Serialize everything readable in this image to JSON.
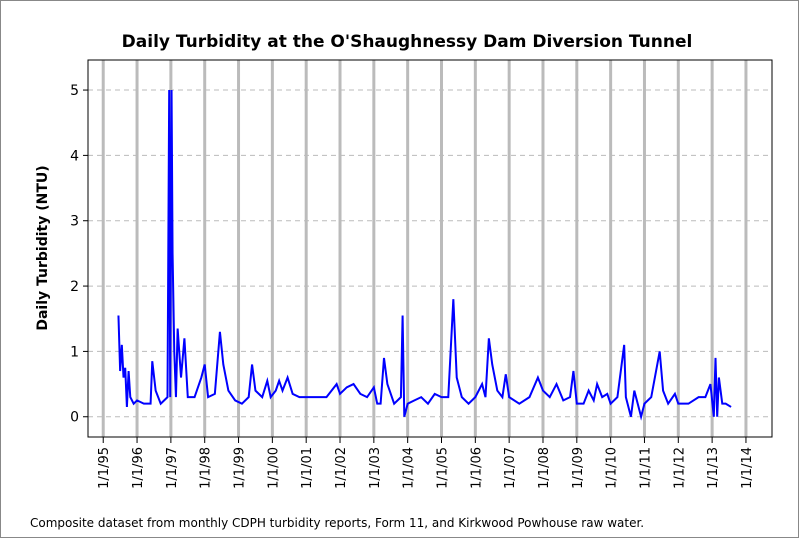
{
  "chart_data": {
    "type": "line",
    "title": "Daily Turbidity at the O'Shaughnessy Dam Diversion Tunnel",
    "y_label": "Daily Turbidity (NTU)",
    "note": "Composite dataset from monthly CDPH turbidity reports, Form 11, and Kirkwood Powhouse raw water.",
    "x": [
      1995.45,
      1995.5,
      1995.55,
      1995.6,
      1995.65,
      1995.7,
      1995.75,
      1995.8,
      1995.9,
      1996.0,
      1996.2,
      1996.4,
      1996.45,
      1996.55,
      1996.7,
      1996.9,
      1996.95,
      1996.98,
      1997.02,
      1997.05,
      1997.1,
      1997.15,
      1997.2,
      1997.3,
      1997.4,
      1997.5,
      1997.7,
      1997.9,
      1998.0,
      1998.1,
      1998.3,
      1998.45,
      1998.55,
      1998.7,
      1998.9,
      1999.1,
      1999.3,
      1999.4,
      1999.5,
      1999.7,
      1999.85,
      1999.95,
      2000.1,
      2000.2,
      2000.3,
      2000.45,
      2000.6,
      2000.8,
      2001.0,
      2001.3,
      2001.6,
      2001.9,
      2002.0,
      2002.2,
      2002.4,
      2002.6,
      2002.8,
      2003.0,
      2003.1,
      2003.2,
      2003.3,
      2003.4,
      2003.6,
      2003.8,
      2003.85,
      2003.9,
      2004.0,
      2004.2,
      2004.4,
      2004.6,
      2004.8,
      2005.0,
      2005.2,
      2005.35,
      2005.45,
      2005.6,
      2005.8,
      2006.0,
      2006.2,
      2006.3,
      2006.4,
      2006.5,
      2006.65,
      2006.8,
      2006.9,
      2007.0,
      2007.3,
      2007.6,
      2007.85,
      2008.0,
      2008.2,
      2008.4,
      2008.6,
      2008.8,
      2008.9,
      2009.0,
      2009.2,
      2009.35,
      2009.5,
      2009.6,
      2009.75,
      2009.9,
      2010.0,
      2010.2,
      2010.4,
      2010.45,
      2010.6,
      2010.7,
      2010.9,
      2011.0,
      2011.2,
      2011.45,
      2011.55,
      2011.7,
      2011.9,
      2012.0,
      2012.3,
      2012.6,
      2012.8,
      2012.95,
      2013.05,
      2013.1,
      2013.15,
      2013.2,
      2013.3,
      2013.4,
      2013.56
    ],
    "series": [
      {
        "name": "Daily Turbidity",
        "color": "#0000ff",
        "values": [
          1.55,
          0.7,
          1.1,
          0.6,
          0.75,
          0.15,
          0.7,
          0.3,
          0.2,
          0.25,
          0.2,
          0.2,
          0.85,
          0.4,
          0.2,
          0.3,
          5.0,
          0.3,
          5.0,
          2.5,
          1.0,
          0.3,
          1.35,
          0.6,
          1.2,
          0.3,
          0.3,
          0.6,
          0.8,
          0.3,
          0.35,
          1.3,
          0.8,
          0.4,
          0.25,
          0.2,
          0.3,
          0.8,
          0.4,
          0.3,
          0.55,
          0.3,
          0.4,
          0.55,
          0.4,
          0.6,
          0.35,
          0.3,
          0.3,
          0.3,
          0.3,
          0.5,
          0.35,
          0.45,
          0.5,
          0.35,
          0.3,
          0.45,
          0.2,
          0.2,
          0.9,
          0.5,
          0.2,
          0.3,
          1.55,
          0.0,
          0.2,
          0.25,
          0.3,
          0.2,
          0.35,
          0.3,
          0.3,
          1.8,
          0.6,
          0.3,
          0.2,
          0.3,
          0.5,
          0.3,
          1.2,
          0.8,
          0.4,
          0.3,
          0.65,
          0.3,
          0.2,
          0.3,
          0.6,
          0.4,
          0.3,
          0.5,
          0.25,
          0.3,
          0.7,
          0.2,
          0.2,
          0.4,
          0.25,
          0.5,
          0.3,
          0.35,
          0.2,
          0.3,
          1.1,
          0.3,
          0.0,
          0.4,
          0.0,
          0.2,
          0.3,
          1.0,
          0.4,
          0.2,
          0.35,
          0.2,
          0.2,
          0.3,
          0.3,
          0.5,
          0.0,
          0.9,
          0.0,
          0.6,
          0.2,
          0.2,
          0.15
        ]
      }
    ],
    "xlim": [
      1994.55,
      2014.77
    ],
    "ylim": [
      -0.31,
      5.46
    ],
    "xticks": [
      {
        "value": 1995,
        "label": "1/1/95"
      },
      {
        "value": 1996,
        "label": "1/1/96"
      },
      {
        "value": 1997,
        "label": "1/1/97"
      },
      {
        "value": 1998,
        "label": "1/1/98"
      },
      {
        "value": 1999,
        "label": "1/1/99"
      },
      {
        "value": 2000,
        "label": "1/1/00"
      },
      {
        "value": 2001,
        "label": "1/1/01"
      },
      {
        "value": 2002,
        "label": "1/1/02"
      },
      {
        "value": 2003,
        "label": "1/1/03"
      },
      {
        "value": 2004,
        "label": "1/1/04"
      },
      {
        "value": 2005,
        "label": "1/1/05"
      },
      {
        "value": 2006,
        "label": "1/1/06"
      },
      {
        "value": 2007,
        "label": "1/1/07"
      },
      {
        "value": 2008,
        "label": "1/1/08"
      },
      {
        "value": 2009,
        "label": "1/1/09"
      },
      {
        "value": 2010,
        "label": "1/1/10"
      },
      {
        "value": 2011,
        "label": "1/1/11"
      },
      {
        "value": 2012,
        "label": "1/1/12"
      },
      {
        "value": 2013,
        "label": "1/1/13"
      },
      {
        "value": 2014,
        "label": "1/1/14"
      }
    ],
    "yticks": [
      0,
      1,
      2,
      3,
      4,
      5
    ],
    "grid": true
  }
}
